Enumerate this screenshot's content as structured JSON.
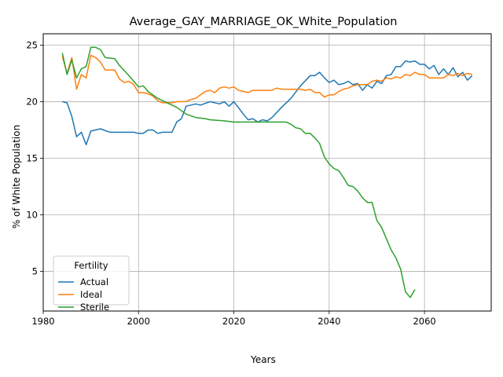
{
  "chart_data": {
    "type": "line",
    "title": "Average_GAY_MARRIAGE_OK_White_Population",
    "xlabel": "Years",
    "ylabel": "% of White Population",
    "xlim": [
      1980,
      2074
    ],
    "ylim": [
      1.5,
      26
    ],
    "xticks": [
      1980,
      2000,
      2020,
      2040,
      2060
    ],
    "xtick_labels": [
      "1980",
      "2000",
      "2020",
      "2040",
      "2060"
    ],
    "yticks": [
      5,
      10,
      15,
      20,
      25
    ],
    "ytick_labels": [
      "5",
      "10",
      "15",
      "20",
      "25"
    ],
    "grid": true,
    "legend": {
      "title": "Fertility",
      "placement": "lower-left"
    },
    "series": [
      {
        "name": "Actual",
        "color": "#1f77b4",
        "x": [
          1984,
          1985,
          1986,
          1987,
          1988,
          1989,
          1990,
          1992,
          1994,
          1996,
          1999,
          2000,
          2001,
          2002,
          2003,
          2004,
          2005,
          2007,
          2008,
          2009,
          2010,
          2012,
          2013,
          2015,
          2017,
          2018,
          2019,
          2020,
          2022,
          2023,
          2024,
          2025,
          2026,
          2027,
          2028,
          2030,
          2032,
          2034,
          2036,
          2037,
          2038,
          2039,
          2040,
          2041,
          2042,
          2043,
          2044,
          2045,
          2046,
          2047,
          2048,
          2049,
          2050,
          2051,
          2052,
          2053,
          2054,
          2055,
          2056,
          2057,
          2058,
          2059,
          2060,
          2061,
          2062,
          2063,
          2064,
          2065,
          2066,
          2067,
          2068,
          2069,
          2070
        ],
        "y": [
          20.0,
          19.9,
          18.7,
          16.9,
          17.3,
          16.2,
          17.4,
          17.6,
          17.3,
          17.3,
          17.3,
          17.2,
          17.2,
          17.5,
          17.5,
          17.2,
          17.3,
          17.3,
          18.2,
          18.5,
          19.6,
          19.8,
          19.7,
          20.0,
          19.8,
          20.0,
          19.6,
          20.0,
          18.9,
          18.4,
          18.5,
          18.2,
          18.4,
          18.3,
          18.6,
          19.5,
          20.3,
          21.4,
          22.3,
          22.3,
          22.6,
          22.1,
          21.7,
          21.9,
          21.5,
          21.6,
          21.8,
          21.5,
          21.6,
          21.0,
          21.5,
          21.2,
          21.8,
          21.6,
          22.3,
          22.4,
          23.1,
          23.1,
          23.6,
          23.5,
          23.6,
          23.3,
          23.3,
          22.9,
          23.2,
          22.4,
          22.9,
          22.4,
          23.0,
          22.2,
          22.6,
          21.9,
          22.3
        ]
      },
      {
        "name": "Ideal",
        "color": "#ff7f0e",
        "x": [
          1984,
          1985,
          1986,
          1987,
          1988,
          1989,
          1990,
          1991,
          1992,
          1993,
          1995,
          1996,
          1997,
          1998,
          1999,
          2000,
          2001,
          2002,
          2003,
          2004,
          2005,
          2006,
          2007,
          2008,
          2009,
          2010,
          2011,
          2012,
          2013,
          2014,
          2015,
          2016,
          2017,
          2018,
          2019,
          2020,
          2021,
          2022,
          2023,
          2024,
          2025,
          2026,
          2027,
          2028,
          2029,
          2030,
          2031,
          2032,
          2033,
          2034,
          2035,
          2036,
          2037,
          2038,
          2039,
          2040,
          2041,
          2042,
          2043,
          2044,
          2045,
          2046,
          2047,
          2048,
          2049,
          2050,
          2051,
          2052,
          2053,
          2054,
          2055,
          2056,
          2057,
          2058,
          2059,
          2060,
          2061,
          2062,
          2063,
          2064,
          2065,
          2066,
          2067,
          2068,
          2069,
          2070
        ],
        "y": [
          24.0,
          22.5,
          23.9,
          21.1,
          22.4,
          22.1,
          24.1,
          23.9,
          23.5,
          22.8,
          22.8,
          22.0,
          21.7,
          21.8,
          21.5,
          20.8,
          20.8,
          20.7,
          20.5,
          20.1,
          19.9,
          19.9,
          19.9,
          20.0,
          20.0,
          20.0,
          20.2,
          20.3,
          20.6,
          20.9,
          21.0,
          20.8,
          21.2,
          21.3,
          21.2,
          21.3,
          21.0,
          20.9,
          20.8,
          21.0,
          21.0,
          21.0,
          21.0,
          21.0,
          21.2,
          21.1,
          21.1,
          21.1,
          21.1,
          21.1,
          21.0,
          21.1,
          20.8,
          20.8,
          20.4,
          20.6,
          20.6,
          20.9,
          21.1,
          21.2,
          21.4,
          21.5,
          21.5,
          21.5,
          21.8,
          21.9,
          21.8,
          22.1,
          22.0,
          22.2,
          22.1,
          22.4,
          22.3,
          22.6,
          22.4,
          22.4,
          22.1,
          22.1,
          22.1,
          22.1,
          22.4,
          22.3,
          22.5,
          22.3,
          22.5,
          22.4
        ]
      },
      {
        "name": "Sterile",
        "color": "#2ca02c",
        "x": [
          1984,
          1985,
          1986,
          1987,
          1988,
          1989,
          1990,
          1991,
          1992,
          1993,
          1995,
          1996,
          1998,
          1999,
          2000,
          2001,
          2002,
          2004,
          2006,
          2008,
          2010,
          2012,
          2014,
          2015,
          2018,
          2020,
          2024,
          2028,
          2030,
          2031,
          2032,
          2033,
          2034,
          2035,
          2036,
          2037,
          2038,
          2039,
          2040,
          2041,
          2042,
          2043,
          2044,
          2045,
          2046,
          2047,
          2048,
          2049,
          2050,
          2051,
          2052,
          2053,
          2054,
          2055,
          2056,
          2057,
          2058
        ],
        "y": [
          24.3,
          22.4,
          23.7,
          22.1,
          22.9,
          23.1,
          24.8,
          24.8,
          24.6,
          23.9,
          23.8,
          23.2,
          22.3,
          21.8,
          21.3,
          21.4,
          20.9,
          20.3,
          19.9,
          19.5,
          18.9,
          18.6,
          18.5,
          18.4,
          18.3,
          18.2,
          18.2,
          18.2,
          18.2,
          18.2,
          18.0,
          17.7,
          17.6,
          17.2,
          17.2,
          16.8,
          16.3,
          15.1,
          14.5,
          14.1,
          13.9,
          13.3,
          12.6,
          12.5,
          12.1,
          11.5,
          11.1,
          11.1,
          9.5,
          8.9,
          7.9,
          6.9,
          6.2,
          5.2,
          3.2,
          2.7,
          3.4
        ]
      }
    ]
  }
}
